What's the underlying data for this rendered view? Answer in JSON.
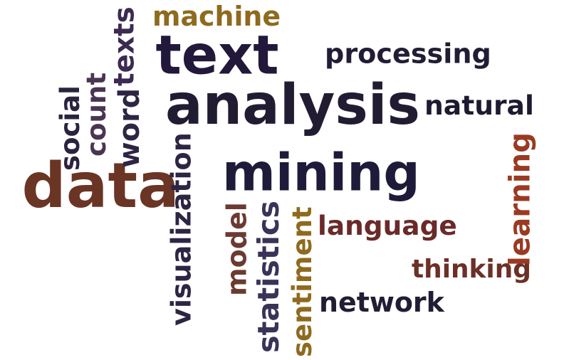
{
  "cloud": {
    "words": [
      {
        "id": "text",
        "text": "text",
        "color": "#22183a",
        "rotated": false
      },
      {
        "id": "analysis",
        "text": "analysis",
        "color": "#221c33",
        "rotated": false
      },
      {
        "id": "mining",
        "text": "mining",
        "color": "#1e1b3a",
        "rotated": false
      },
      {
        "id": "data",
        "text": "data",
        "color": "#6a3524",
        "rotated": false
      },
      {
        "id": "machine",
        "text": "machine",
        "color": "#8f6a1e",
        "rotated": false
      },
      {
        "id": "processing",
        "text": "processing",
        "color": "#221d34",
        "rotated": false
      },
      {
        "id": "natural",
        "text": "natural",
        "color": "#1f1a30",
        "rotated": false
      },
      {
        "id": "language",
        "text": "language",
        "color": "#6a2a2a",
        "rotated": false
      },
      {
        "id": "thinking",
        "text": "thinking",
        "color": "#6b3026",
        "rotated": false
      },
      {
        "id": "network",
        "text": "network",
        "color": "#221d34",
        "rotated": false
      },
      {
        "id": "texts",
        "text": "texts",
        "color": "#3c2a52",
        "rotated": true
      },
      {
        "id": "word",
        "text": "word",
        "color": "#2e2544",
        "rotated": true
      },
      {
        "id": "count",
        "text": "count",
        "color": "#4a3552",
        "rotated": true
      },
      {
        "id": "social",
        "text": "social",
        "color": "#2a2440",
        "rotated": true
      },
      {
        "id": "visualization",
        "text": "visualization",
        "color": "#2e2544",
        "rotated": true
      },
      {
        "id": "model",
        "text": "model",
        "color": "#6b3a30",
        "rotated": true
      },
      {
        "id": "statistics",
        "text": "statistics",
        "color": "#3a3258",
        "rotated": true
      },
      {
        "id": "sentiment",
        "text": "sentiment",
        "color": "#8f6a1e",
        "rotated": true
      },
      {
        "id": "learning",
        "text": "learning",
        "color": "#9a3a22",
        "rotated": true
      }
    ]
  }
}
